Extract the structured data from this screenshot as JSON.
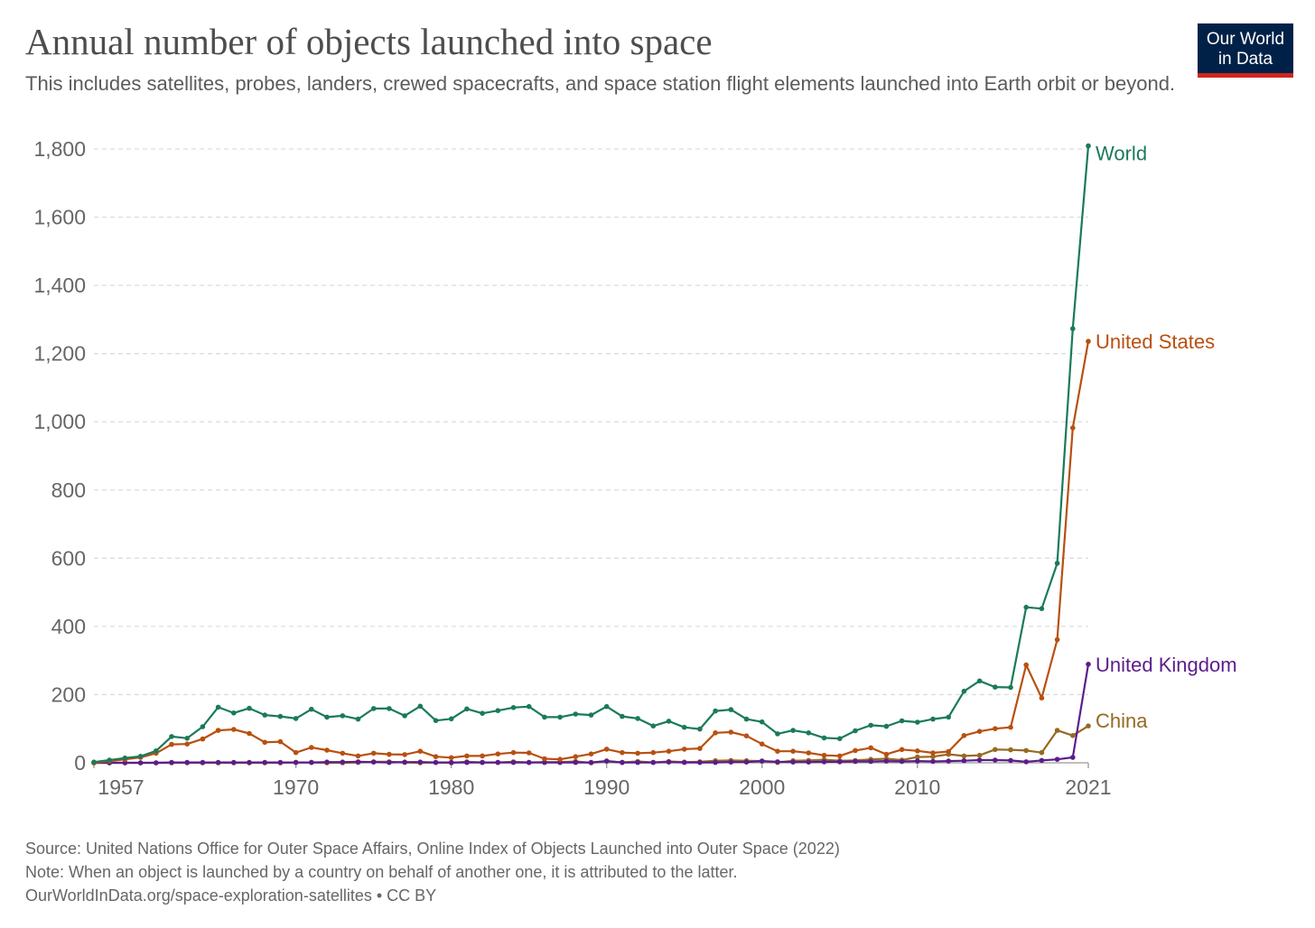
{
  "header": {
    "title": "Annual number of objects launched into space",
    "subtitle": "This includes satellites, probes, landers, crewed spacecrafts, and space station flight elements launched into Earth orbit or beyond."
  },
  "logo": {
    "line1": "Our World",
    "line2": "in Data"
  },
  "footer": {
    "source": "Source: United Nations Office for Outer Space Affairs, Online Index of Objects Launched into Outer Space (2022)",
    "note": "Note: When an object is launched by a country on behalf of another one, it is attributed to the latter.",
    "url": "OurWorldInData.org/space-exploration-satellites • CC BY"
  },
  "colors": {
    "World": "#1a7a5a",
    "United States": "#b8500f",
    "United Kingdom": "#5c1d8a",
    "China": "#956a22",
    "grid": "#dddddd",
    "axis_text": "#666666"
  },
  "chart_data": {
    "type": "line",
    "title": "Annual number of objects launched into space",
    "xlabel": "",
    "ylabel": "",
    "xlim": [
      1957,
      2021
    ],
    "ylim": [
      0,
      1800
    ],
    "x_ticks": [
      "1957",
      "1970",
      "1980",
      "1990",
      "2000",
      "2010",
      "2021"
    ],
    "y_ticks": [
      "0",
      "200",
      "400",
      "600",
      "800",
      "1,000",
      "1,200",
      "1,400",
      "1,600",
      "1,800"
    ],
    "grid": true,
    "legend": "inline labels at line ends",
    "x": [
      1957,
      1958,
      1959,
      1960,
      1961,
      1962,
      1963,
      1964,
      1965,
      1966,
      1967,
      1968,
      1969,
      1970,
      1971,
      1972,
      1973,
      1974,
      1975,
      1976,
      1977,
      1978,
      1979,
      1980,
      1981,
      1982,
      1983,
      1984,
      1985,
      1986,
      1987,
      1988,
      1989,
      1990,
      1991,
      1992,
      1993,
      1994,
      1995,
      1996,
      1997,
      1998,
      1999,
      2000,
      2001,
      2002,
      2003,
      2004,
      2005,
      2006,
      2007,
      2008,
      2009,
      2010,
      2011,
      2012,
      2013,
      2014,
      2015,
      2016,
      2017,
      2018,
      2019,
      2020,
      2021
    ],
    "series": [
      {
        "name": "World",
        "values": [
          2,
          8,
          14,
          19,
          35,
          77,
          72,
          106,
          163,
          146,
          160,
          140,
          136,
          130,
          157,
          134,
          138,
          128,
          159,
          159,
          138,
          166,
          124,
          129,
          158,
          145,
          153,
          162,
          165,
          134,
          134,
          143,
          140,
          165,
          136,
          130,
          108,
          122,
          104,
          99,
          152,
          156,
          128,
          120,
          85,
          95,
          88,
          73,
          71,
          94,
          110,
          107,
          123,
          119,
          128,
          134,
          210,
          240,
          222,
          221,
          456,
          452,
          585,
          1273,
          1809
        ]
      },
      {
        "name": "United States",
        "values": [
          0,
          5,
          10,
          16,
          28,
          54,
          55,
          70,
          95,
          98,
          86,
          60,
          62,
          30,
          45,
          37,
          28,
          20,
          28,
          25,
          24,
          34,
          18,
          15,
          20,
          20,
          26,
          30,
          29,
          12,
          10,
          18,
          26,
          40,
          30,
          28,
          30,
          34,
          40,
          42,
          88,
          90,
          79,
          55,
          34,
          34,
          29,
          22,
          20,
          36,
          44,
          25,
          39,
          35,
          29,
          33,
          80,
          92,
          100,
          104,
          287,
          190,
          361,
          982,
          1236
        ]
      },
      {
        "name": "United Kingdom",
        "values": [
          0,
          0,
          0,
          0,
          0,
          1,
          1,
          1,
          1,
          1,
          1,
          1,
          1,
          1,
          1,
          2,
          2,
          3,
          2,
          1,
          2,
          2,
          1,
          1,
          1,
          1,
          1,
          1,
          1,
          1,
          1,
          1,
          1,
          5,
          1,
          1,
          1,
          2,
          1,
          1,
          1,
          2,
          2,
          5,
          3,
          2,
          2,
          3,
          3,
          4,
          4,
          5,
          4,
          5,
          4,
          5,
          6,
          8,
          8,
          7,
          3,
          7,
          10,
          16,
          289
        ]
      },
      {
        "name": "China",
        "values": [
          0,
          0,
          0,
          0,
          0,
          0,
          0,
          0,
          0,
          0,
          0,
          0,
          0,
          1,
          1,
          0,
          0,
          1,
          3,
          3,
          1,
          0,
          1,
          0,
          3,
          1,
          1,
          3,
          1,
          2,
          2,
          4,
          0,
          5,
          1,
          4,
          1,
          4,
          2,
          3,
          6,
          7,
          6,
          5,
          1,
          6,
          7,
          9,
          6,
          7,
          10,
          12,
          8,
          17,
          18,
          25,
          20,
          22,
          39,
          38,
          36,
          30,
          95,
          80,
          108
        ]
      }
    ]
  }
}
